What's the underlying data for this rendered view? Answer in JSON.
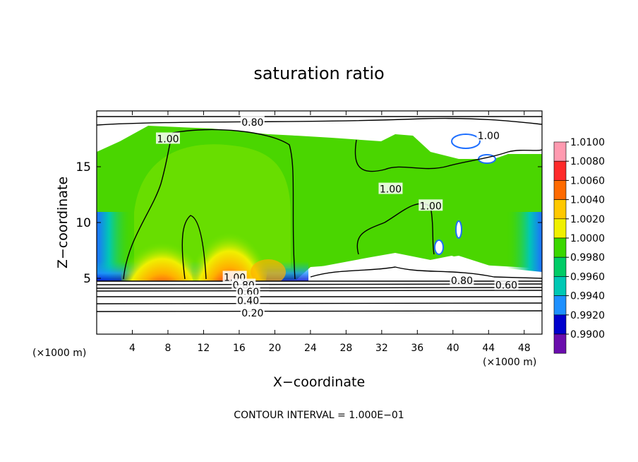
{
  "chart_data": {
    "type": "heatmap",
    "title": "saturation ratio",
    "xlabel": "X−coordinate",
    "ylabel": "Z−coordinate",
    "x_unit_left": "(×1000 m)",
    "x_unit_right": "(×1000 m)",
    "footer": "CONTOUR INTERVAL = 1.000E−01",
    "xlim": [
      0,
      50
    ],
    "ylim": [
      0,
      20
    ],
    "x_ticks": [
      4,
      8,
      12,
      16,
      20,
      24,
      28,
      32,
      36,
      40,
      44,
      48
    ],
    "y_ticks": [
      5,
      10,
      15
    ],
    "colorbar": {
      "values": [
        1.01,
        1.008,
        1.006,
        1.004,
        1.002,
        1.0,
        0.998,
        0.996,
        0.994,
        0.992,
        0.99
      ],
      "labels": [
        "1.0100",
        "1.0080",
        "1.0060",
        "1.0040",
        "1.0020",
        "1.0000",
        "0.9980",
        "0.9960",
        "0.9940",
        "0.9920",
        "0.9900"
      ],
      "colors": [
        "#ff9ab0",
        "#ff2a2a",
        "#ff6a00",
        "#ffc800",
        "#f0f000",
        "#3ad700",
        "#00cc66",
        "#00c8b4",
        "#1e90ff",
        "#0000cd",
        "#6a0dad"
      ]
    },
    "contour_labels": [
      {
        "text": "0.80",
        "x": 17.5,
        "z": 19.0
      },
      {
        "text": "1.00",
        "x": 8.0,
        "z": 17.5
      },
      {
        "text": "1.00",
        "x": 33.0,
        "z": 13.0
      },
      {
        "text": "1.00",
        "x": 37.5,
        "z": 11.5
      },
      {
        "text": "1.00",
        "x": 44.0,
        "z": 17.8
      },
      {
        "text": "1.00",
        "x": 15.5,
        "z": 5.1
      },
      {
        "text": "0.80",
        "x": 16.5,
        "z": 4.4
      },
      {
        "text": "0.60",
        "x": 17.0,
        "z": 3.8
      },
      {
        "text": "0.40",
        "x": 17.0,
        "z": 3.0
      },
      {
        "text": "0.20",
        "x": 17.5,
        "z": 1.9
      },
      {
        "text": "0.80",
        "x": 41.0,
        "z": 4.8
      },
      {
        "text": "0.60",
        "x": 46.0,
        "z": 4.4
      }
    ]
  }
}
